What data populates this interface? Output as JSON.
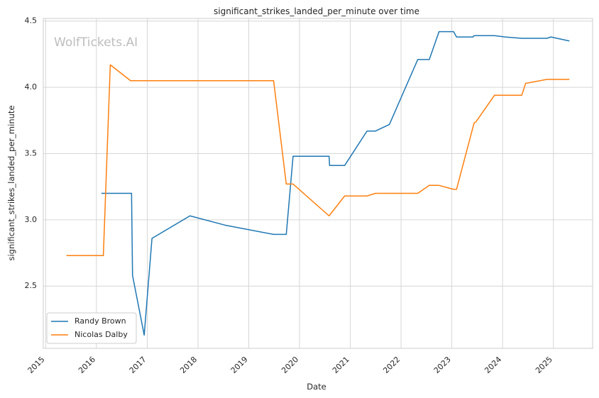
{
  "chart_data": {
    "type": "line",
    "title": "significant_strikes_landed_per_minute over time",
    "xlabel": "Date",
    "ylabel": "significant_strikes_landed_per_minute",
    "watermark": "WolfTickets.AI",
    "grid": true,
    "legend_position": "bottom-left",
    "x_ticks": [
      "2015",
      "2016",
      "2017",
      "2018",
      "2019",
      "2020",
      "2021",
      "2022",
      "2023",
      "2024",
      "2025"
    ],
    "y_ticks": [
      "2.5",
      "3.0",
      "3.5",
      "4.0",
      "4.5"
    ],
    "xlim": [
      "2014-12-15",
      "2025-10-10"
    ],
    "ylim": [
      2.03,
      4.52
    ],
    "series": [
      {
        "name": "Randy Brown",
        "color": "#1f77b4",
        "points": [
          {
            "x": "2016-02-06",
            "y": 3.2
          },
          {
            "x": "2016-09-10",
            "y": 3.2
          },
          {
            "x": "2016-09-17",
            "y": 2.58
          },
          {
            "x": "2016-12-10",
            "y": 2.13
          },
          {
            "x": "2017-02-04",
            "y": 2.86
          },
          {
            "x": "2017-11-04",
            "y": 3.03
          },
          {
            "x": "2018-07-14",
            "y": 2.96
          },
          {
            "x": "2019-06-29",
            "y": 2.89
          },
          {
            "x": "2019-09-28",
            "y": 2.89
          },
          {
            "x": "2019-11-16",
            "y": 3.48
          },
          {
            "x": "2020-08-01",
            "y": 3.48
          },
          {
            "x": "2020-08-05",
            "y": 3.41
          },
          {
            "x": "2020-11-21",
            "y": 3.41
          },
          {
            "x": "2021-05-01",
            "y": 3.67
          },
          {
            "x": "2021-07-01",
            "y": 3.67
          },
          {
            "x": "2021-10-09",
            "y": 3.72
          },
          {
            "x": "2022-05-01",
            "y": 4.21
          },
          {
            "x": "2022-07-23",
            "y": 4.21
          },
          {
            "x": "2022-10-01",
            "y": 4.42
          },
          {
            "x": "2023-01-14",
            "y": 4.42
          },
          {
            "x": "2023-02-04",
            "y": 4.38
          },
          {
            "x": "2023-06-03",
            "y": 4.38
          },
          {
            "x": "2023-06-10",
            "y": 4.39
          },
          {
            "x": "2023-11-04",
            "y": 4.39
          },
          {
            "x": "2024-01-20",
            "y": 4.38
          },
          {
            "x": "2024-05-18",
            "y": 4.37
          },
          {
            "x": "2024-11-16",
            "y": 4.37
          },
          {
            "x": "2024-12-14",
            "y": 4.38
          },
          {
            "x": "2025-04-26",
            "y": 4.35
          }
        ]
      },
      {
        "name": "Nicolas Dalby",
        "color": "#ff7f0e",
        "points": [
          {
            "x": "2015-05-30",
            "y": 2.73
          },
          {
            "x": "2016-02-20",
            "y": 2.73
          },
          {
            "x": "2016-04-10",
            "y": 4.17
          },
          {
            "x": "2016-09-03",
            "y": 4.05
          },
          {
            "x": "2019-06-29",
            "y": 4.05
          },
          {
            "x": "2019-09-28",
            "y": 3.27
          },
          {
            "x": "2019-11-16",
            "y": 3.27
          },
          {
            "x": "2020-08-01",
            "y": 3.03
          },
          {
            "x": "2020-11-21",
            "y": 3.18
          },
          {
            "x": "2021-05-01",
            "y": 3.18
          },
          {
            "x": "2021-07-01",
            "y": 3.2
          },
          {
            "x": "2022-05-01",
            "y": 3.2
          },
          {
            "x": "2022-07-23",
            "y": 3.26
          },
          {
            "x": "2022-10-01",
            "y": 3.26
          },
          {
            "x": "2023-01-14",
            "y": 3.23
          },
          {
            "x": "2023-02-04",
            "y": 3.23
          },
          {
            "x": "2023-06-10",
            "y": 3.73
          },
          {
            "x": "2023-06-24",
            "y": 3.74
          },
          {
            "x": "2023-11-04",
            "y": 3.94
          },
          {
            "x": "2024-05-18",
            "y": 3.94
          },
          {
            "x": "2024-06-15",
            "y": 4.03
          },
          {
            "x": "2024-11-16",
            "y": 4.06
          },
          {
            "x": "2025-04-26",
            "y": 4.06
          }
        ]
      }
    ]
  }
}
